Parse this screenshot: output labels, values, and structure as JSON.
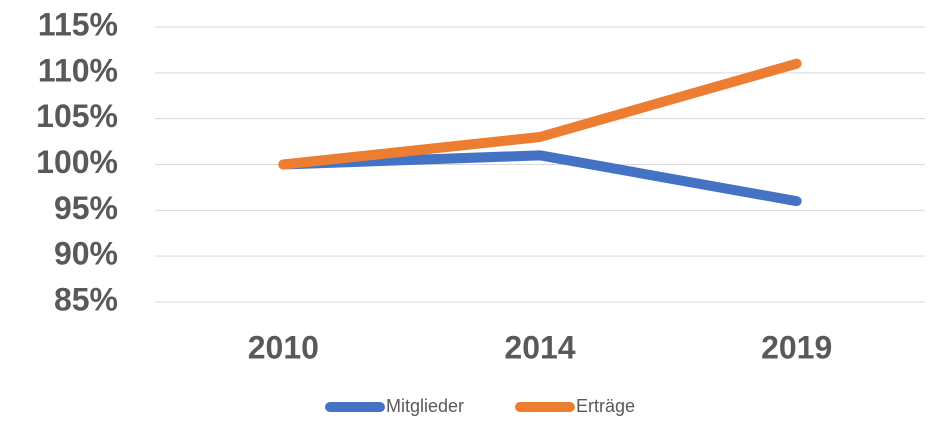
{
  "chart_data": {
    "type": "line",
    "categories": [
      "2010",
      "2014",
      "2019"
    ],
    "series": [
      {
        "name": "Mitglieder",
        "color": "#4472c4",
        "values": [
          100,
          101,
          96
        ]
      },
      {
        "name": "Erträge",
        "color": "#ed7d31",
        "values": [
          100,
          103,
          111
        ]
      }
    ],
    "ylim": [
      85,
      115
    ],
    "yticks": [
      {
        "value": 85,
        "label": "85%"
      },
      {
        "value": 90,
        "label": "90%"
      },
      {
        "value": 95,
        "label": "95%"
      },
      {
        "value": 100,
        "label": "100%"
      },
      {
        "value": 105,
        "label": "105%"
      },
      {
        "value": 110,
        "label": "110%"
      },
      {
        "value": 115,
        "label": "115%"
      }
    ],
    "grid": true,
    "legend": "bottom"
  }
}
